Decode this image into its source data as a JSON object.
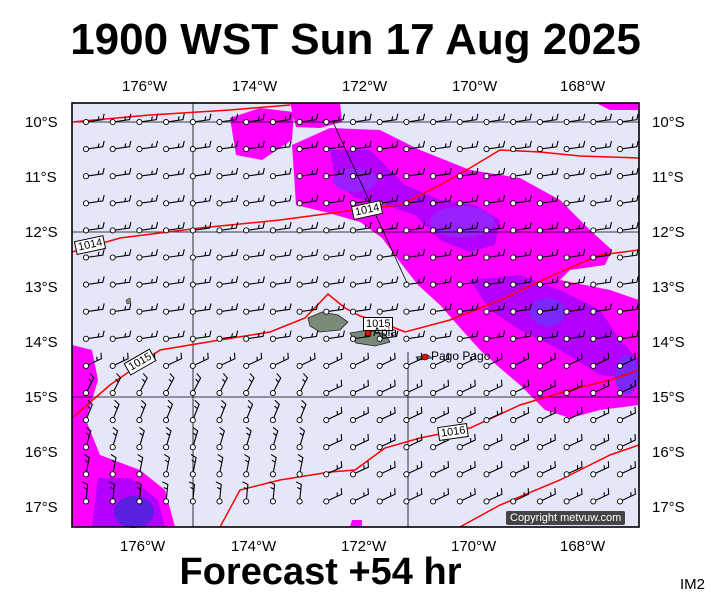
{
  "title": "1900 WST Sun 17 Aug 2025",
  "footer": "Forecast +54 hr",
  "image_code": "IM2",
  "copyright": "Copyright metvuw.com",
  "longitude_labels": [
    "176°W",
    "174°W",
    "172°W",
    "170°W",
    "168°W"
  ],
  "latitude_labels": [
    "10°S",
    "11°S",
    "12°S",
    "13°S",
    "14°S",
    "15°S",
    "16°S",
    "17°S"
  ],
  "isobar_labels": [
    "1014",
    "1014",
    "1015",
    "1015",
    "1016"
  ],
  "places": [
    {
      "name": "Apia",
      "label": "Apia"
    },
    {
      "name": "Pago Pago",
      "label": "Pago Pago"
    }
  ],
  "colors": {
    "background": "#e6e6fa",
    "rain_light": "#ff00ff",
    "rain_medium": "#b400ff",
    "rain_heavy": "#7a28ff",
    "isobar": "#ff0000",
    "wind_barb": "#000000",
    "land": "#7a8a78"
  }
}
